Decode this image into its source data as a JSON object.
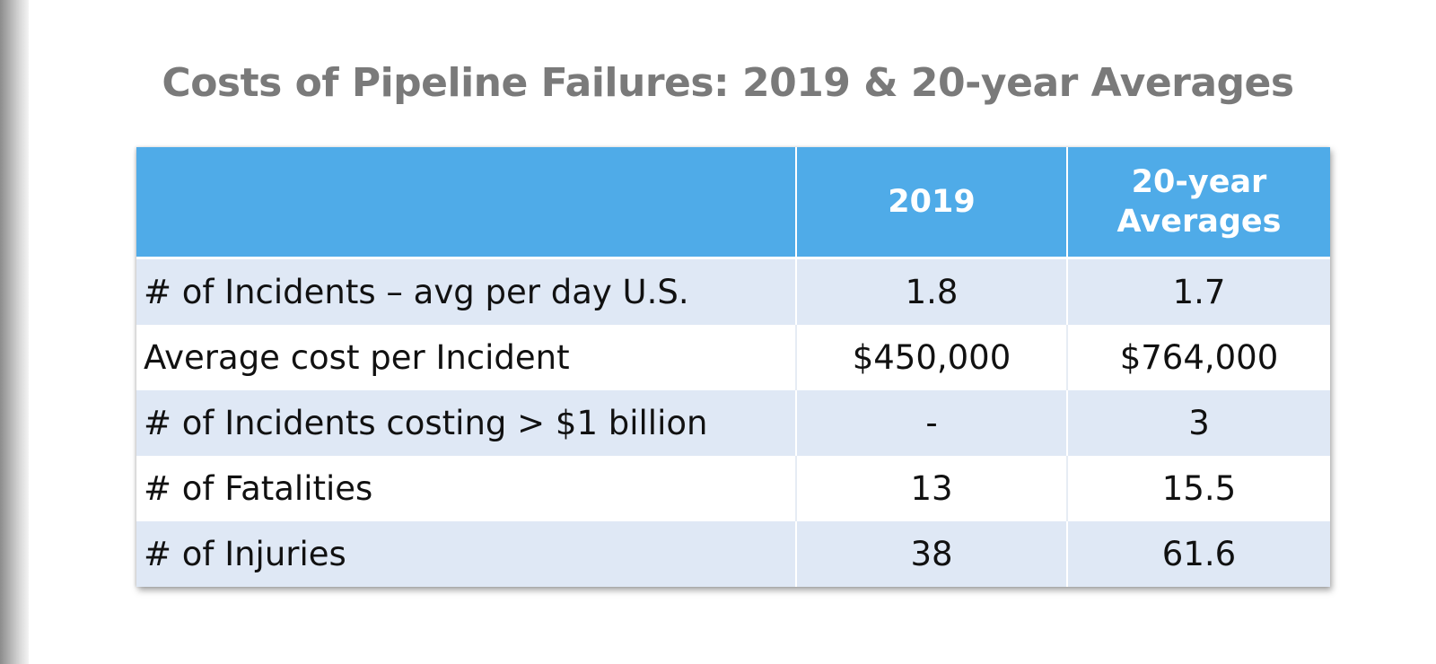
{
  "title": "Costs of Pipeline Failures: 2019 & 20-year Averages",
  "table": {
    "headers": {
      "label": "",
      "col_2019": "2019",
      "col_avg_line1": "20-year",
      "col_avg_line2": "Averages"
    },
    "rows": [
      {
        "label": "# of Incidents – avg per day U.S.",
        "v2019": "1.8",
        "avg": "1.7"
      },
      {
        "label": "Average cost per Incident",
        "v2019": "$450,000",
        "avg": "$764,000"
      },
      {
        "label": "# of Incidents costing > $1 billion",
        "v2019": "-",
        "avg": "3"
      },
      {
        "label": "# of Fatalities",
        "v2019": "13",
        "avg": "15.5"
      },
      {
        "label": "# of Injuries",
        "v2019": "38",
        "avg": "61.6"
      }
    ]
  },
  "colors": {
    "header_bg": "#4fabe8",
    "band_bg": "#dfe8f5",
    "title_text": "#7a7a7a"
  }
}
